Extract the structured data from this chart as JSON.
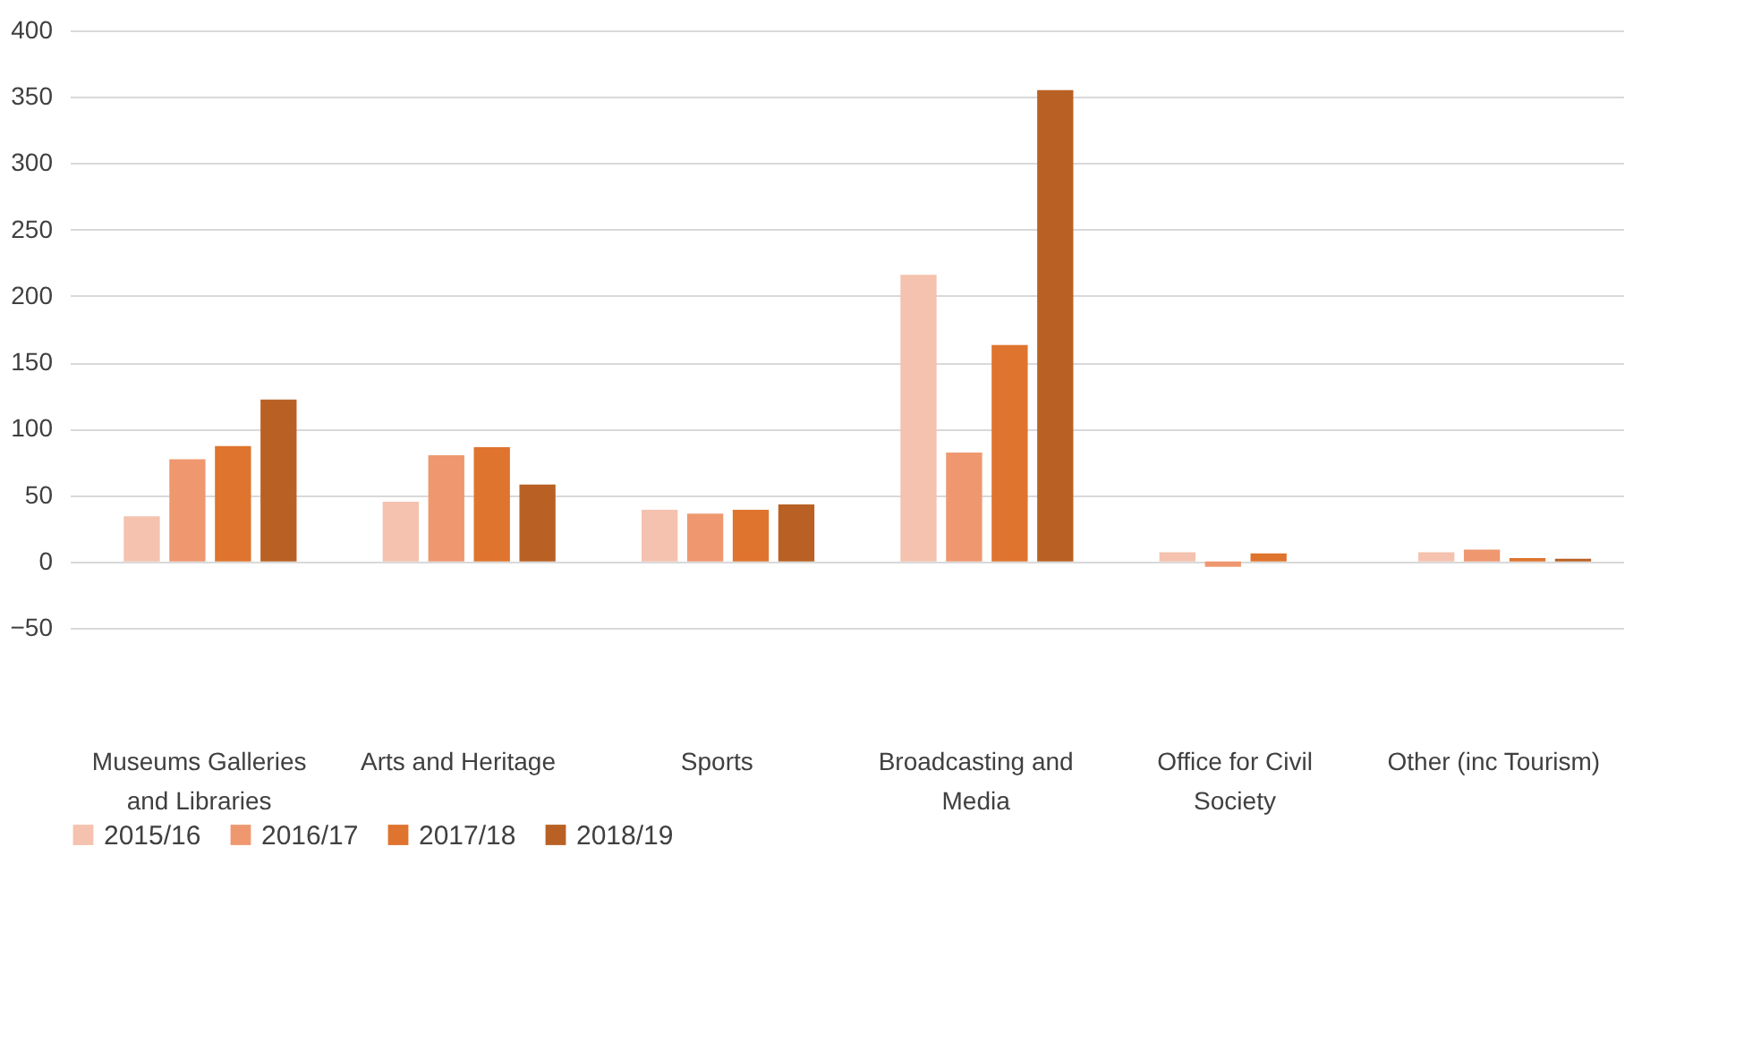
{
  "chart_data": {
    "type": "bar",
    "categories": [
      "Museums Galleries and Libraries",
      "Arts and Heritage",
      "Sports",
      "Broadcasting and Media",
      "Office for Civil Society",
      "Other (inc Tourism)"
    ],
    "series": [
      {
        "name": "2015/16",
        "color": "#f4c2ae",
        "values": [
          34,
          45,
          39,
          216,
          7,
          7
        ]
      },
      {
        "name": "2016/17",
        "color": "#ef9870",
        "values": [
          77,
          80,
          36,
          82,
          -4,
          9
        ]
      },
      {
        "name": "2017/18",
        "color": "#df742e",
        "values": [
          87,
          86,
          39,
          163,
          6,
          2.5
        ]
      },
      {
        "name": "2018/19",
        "color": "#b96124",
        "values": [
          122,
          58,
          43,
          355,
          null,
          2
        ]
      }
    ],
    "ylim": [
      -50,
      400
    ],
    "yticks": [
      -50,
      0,
      50,
      100,
      150,
      200,
      250,
      300,
      350,
      400
    ],
    "grid": "y",
    "legend": "bottom"
  }
}
